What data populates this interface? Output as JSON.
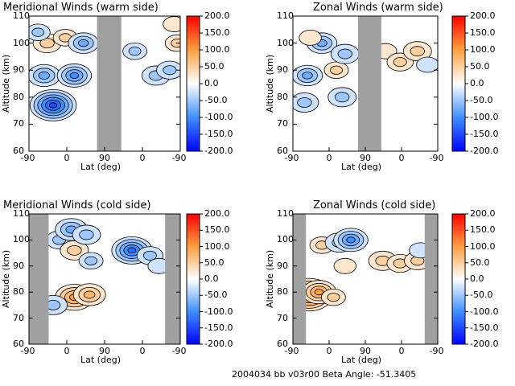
{
  "footer": {
    "label": "2004034 bb v03r00   Beta Angle: -51.3405"
  },
  "colorbar": {
    "ticks": [
      "200.0",
      "150.0",
      "100.0",
      "50.0",
      "0.0",
      "-50.0",
      "-100.0",
      "-150.0",
      "-200.0"
    ],
    "range": [
      -200,
      200
    ],
    "colors": {
      "min": "#0000ff",
      "neg": "#3f8fff",
      "zero": "#ffffff",
      "pos": "#ff9f3f",
      "max": "#ff0000"
    }
  },
  "chart_data": [
    {
      "type": "heatmap",
      "title": "Meridional Winds (warm side)",
      "xlabel": "Lat (deg)",
      "ylabel": "Altitude (km)",
      "xticks": [
        "-90",
        "0",
        "90",
        "0",
        "-90"
      ],
      "yticks": [
        "60",
        "70",
        "80",
        "90",
        "100",
        "110"
      ],
      "ylim": [
        60,
        110
      ],
      "colorbar_range": [
        -200,
        200
      ],
      "gaps": [
        {
          "from": 0.45,
          "to": 0.61
        }
      ],
      "blobs": [
        {
          "x": 0.16,
          "y": 77,
          "value": -150
        },
        {
          "x": 0.1,
          "y": 88,
          "value": -80
        },
        {
          "x": 0.3,
          "y": 88,
          "value": -90
        },
        {
          "x": 0.12,
          "y": 100,
          "value": 60
        },
        {
          "x": 0.24,
          "y": 102,
          "value": 40
        },
        {
          "x": 0.36,
          "y": 100,
          "value": -70
        },
        {
          "x": 0.06,
          "y": 104,
          "value": -40
        },
        {
          "x": 0.7,
          "y": 97,
          "value": -40
        },
        {
          "x": 0.84,
          "y": 88,
          "value": -60
        },
        {
          "x": 0.93,
          "y": 90,
          "value": -50
        },
        {
          "x": 0.98,
          "y": 100,
          "value": 40
        },
        {
          "x": 0.96,
          "y": 107,
          "value": 30
        }
      ]
    },
    {
      "type": "heatmap",
      "title": "Zonal Winds (warm side)",
      "xlabel": "Lat (deg)",
      "ylabel": "Altitude (km)",
      "xticks": [
        "-90",
        "0",
        "90",
        "0",
        "-90"
      ],
      "yticks": [
        "60",
        "70",
        "80",
        "90",
        "100",
        "110"
      ],
      "ylim": [
        60,
        110
      ],
      "colorbar_range": [
        -200,
        200
      ],
      "gaps": [
        {
          "from": 0.45,
          "to": 0.61
        }
      ],
      "blobs": [
        {
          "x": 0.1,
          "y": 88,
          "value": -70
        },
        {
          "x": 0.08,
          "y": 78,
          "value": -60
        },
        {
          "x": 0.2,
          "y": 100,
          "value": -70
        },
        {
          "x": 0.3,
          "y": 90,
          "value": 40
        },
        {
          "x": 0.36,
          "y": 96,
          "value": -60
        },
        {
          "x": 0.34,
          "y": 80,
          "value": -60
        },
        {
          "x": 0.12,
          "y": 102,
          "value": 30
        },
        {
          "x": 0.64,
          "y": 97,
          "value": 30
        },
        {
          "x": 0.74,
          "y": 93,
          "value": 50
        },
        {
          "x": 0.86,
          "y": 97,
          "value": 60
        },
        {
          "x": 0.93,
          "y": 92,
          "value": -30
        }
      ]
    },
    {
      "type": "heatmap",
      "title": "Meridional Winds (cold side)",
      "xlabel": "Lat (deg)",
      "ylabel": "Altitude (km)",
      "xticks": [
        "-90",
        "0",
        "90",
        "0",
        "-90"
      ],
      "yticks": [
        "60",
        "70",
        "80",
        "90",
        "100",
        "110"
      ],
      "ylim": [
        60,
        110
      ],
      "colorbar_range": [
        -200,
        200
      ],
      "gaps": [
        {
          "from": 0.0,
          "to": 0.13
        },
        {
          "from": 0.9,
          "to": 1.0
        }
      ],
      "blobs": [
        {
          "x": 0.3,
          "y": 78,
          "value": 110
        },
        {
          "x": 0.4,
          "y": 79,
          "value": 80
        },
        {
          "x": 0.16,
          "y": 75,
          "value": -60
        },
        {
          "x": 0.2,
          "y": 100,
          "value": -50
        },
        {
          "x": 0.28,
          "y": 104,
          "value": -80
        },
        {
          "x": 0.3,
          "y": 96,
          "value": 60
        },
        {
          "x": 0.38,
          "y": 102,
          "value": -60
        },
        {
          "x": 0.41,
          "y": 92,
          "value": -40
        },
        {
          "x": 0.68,
          "y": 96,
          "value": -120
        },
        {
          "x": 0.8,
          "y": 94,
          "value": -50
        },
        {
          "x": 0.86,
          "y": 90,
          "value": -30
        }
      ]
    },
    {
      "type": "heatmap",
      "title": "Zonal Winds (cold side)",
      "xlabel": "Lat (deg)",
      "ylabel": "Altitude (km)",
      "xticks": [
        "-90",
        "0",
        "90",
        "0",
        "-90"
      ],
      "yticks": [
        "60",
        "70",
        "80",
        "90",
        "100",
        "110"
      ],
      "ylim": [
        60,
        110
      ],
      "colorbar_range": [
        -200,
        200
      ],
      "gaps": [
        {
          "from": 0.0,
          "to": 0.09
        },
        {
          "from": 0.91,
          "to": 1.0
        }
      ],
      "blobs": [
        {
          "x": 0.11,
          "y": 79,
          "value": 160
        },
        {
          "x": 0.18,
          "y": 80,
          "value": 90
        },
        {
          "x": 0.28,
          "y": 78,
          "value": 40
        },
        {
          "x": 0.2,
          "y": 98,
          "value": 40
        },
        {
          "x": 0.32,
          "y": 99,
          "value": -60
        },
        {
          "x": 0.4,
          "y": 100,
          "value": -90
        },
        {
          "x": 0.36,
          "y": 90,
          "value": 30
        },
        {
          "x": 0.62,
          "y": 92,
          "value": 60
        },
        {
          "x": 0.74,
          "y": 91,
          "value": 50
        },
        {
          "x": 0.86,
          "y": 92,
          "value": 50
        },
        {
          "x": 0.88,
          "y": 96,
          "value": -30
        }
      ]
    }
  ]
}
